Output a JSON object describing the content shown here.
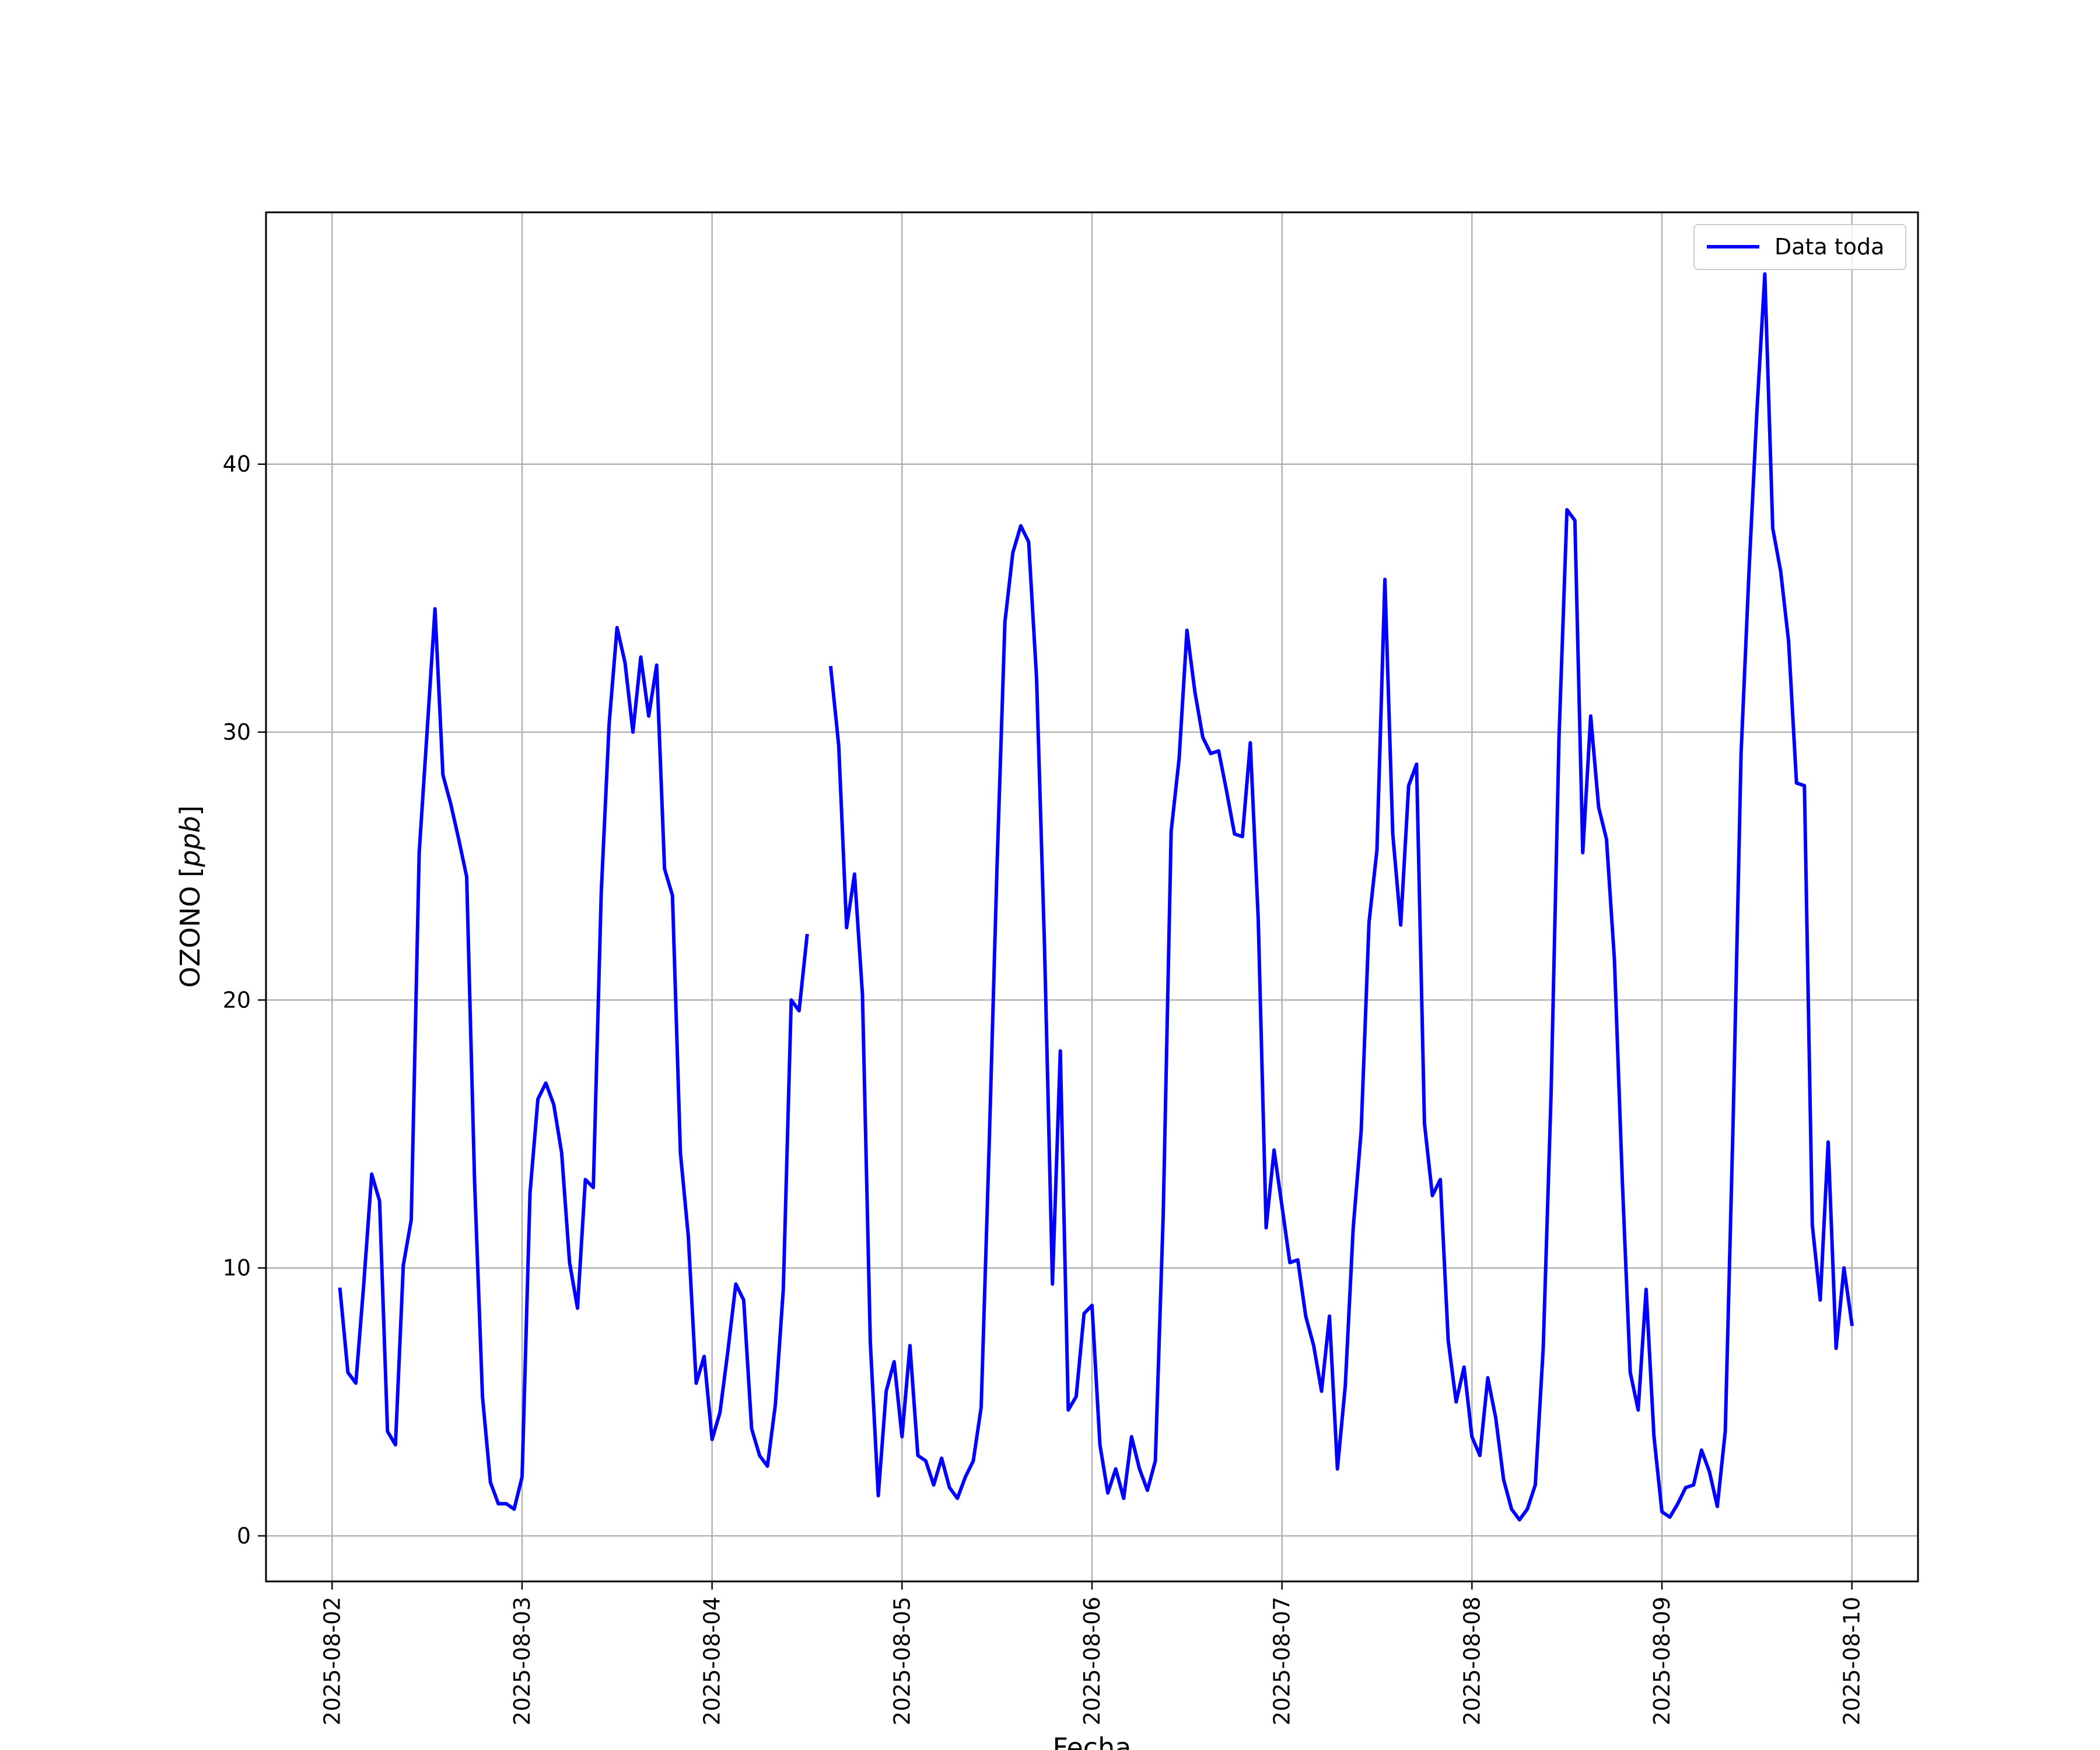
{
  "chart_data": {
    "type": "line",
    "title": "",
    "xlabel": "Fecha",
    "ylabel_main": "OZONO [",
    "ylabel_unit": "ppb",
    "ylabel_close": "]",
    "x_ticks": [
      "2025-08-02",
      "2025-08-03",
      "2025-08-04",
      "2025-08-05",
      "2025-08-06",
      "2025-08-07",
      "2025-08-08",
      "2025-08-09",
      "2025-08-10"
    ],
    "y_ticks": [
      0,
      10,
      20,
      30,
      40
    ],
    "xlim": [
      "2025-08-01T15:39",
      "2025-08-10T08:21"
    ],
    "ylim": [
      -1.7,
      49.4
    ],
    "grid": true,
    "legend_position": "top-right",
    "series": [
      {
        "name": "Data toda",
        "color": "#0000ff",
        "points": [
          [
            "2025-08-02T01:00",
            9.2
          ],
          [
            "2025-08-02T02:00",
            6.1
          ],
          [
            "2025-08-02T03:00",
            5.7
          ],
          [
            "2025-08-02T04:00",
            9.4
          ],
          [
            "2025-08-02T05:00",
            13.5
          ],
          [
            "2025-08-02T06:00",
            12.5
          ],
          [
            "2025-08-02T07:00",
            3.9
          ],
          [
            "2025-08-02T08:00",
            3.4
          ],
          [
            "2025-08-02T09:00",
            10.1
          ],
          [
            "2025-08-02T10:00",
            11.8
          ],
          [
            "2025-08-02T11:00",
            25.5
          ],
          [
            "2025-08-02T12:00",
            30.0
          ],
          [
            "2025-08-02T13:00",
            34.6
          ],
          [
            "2025-08-02T14:00",
            28.4
          ],
          [
            "2025-08-02T15:00",
            27.3
          ],
          [
            "2025-08-02T16:00",
            26.0
          ],
          [
            "2025-08-02T17:00",
            24.6
          ],
          [
            "2025-08-02T18:00",
            13.2
          ],
          [
            "2025-08-02T19:00",
            5.2
          ],
          [
            "2025-08-02T20:00",
            2.0
          ],
          [
            "2025-08-02T21:00",
            1.2
          ],
          [
            "2025-08-02T22:00",
            1.2
          ],
          [
            "2025-08-02T23:00",
            1.0
          ],
          [
            "2025-08-03T00:00",
            2.2
          ],
          [
            "2025-08-03T01:00",
            12.8
          ],
          [
            "2025-08-03T02:00",
            16.3
          ],
          [
            "2025-08-03T03:00",
            16.9
          ],
          [
            "2025-08-03T04:00",
            16.1
          ],
          [
            "2025-08-03T05:00",
            14.3
          ],
          [
            "2025-08-03T06:00",
            10.2
          ],
          [
            "2025-08-03T07:00",
            8.5
          ],
          [
            "2025-08-03T08:00",
            13.3
          ],
          [
            "2025-08-03T09:00",
            13.0
          ],
          [
            "2025-08-03T10:00",
            24.0
          ],
          [
            "2025-08-03T11:00",
            30.3
          ],
          [
            "2025-08-03T12:00",
            33.9
          ],
          [
            "2025-08-03T13:00",
            32.6
          ],
          [
            "2025-08-03T14:00",
            30.0
          ],
          [
            "2025-08-03T15:00",
            32.8
          ],
          [
            "2025-08-03T16:00",
            30.6
          ],
          [
            "2025-08-03T17:00",
            32.5
          ],
          [
            "2025-08-03T18:00",
            24.9
          ],
          [
            "2025-08-03T19:00",
            23.9
          ],
          [
            "2025-08-03T20:00",
            14.3
          ],
          [
            "2025-08-03T21:00",
            11.2
          ],
          [
            "2025-08-03T22:00",
            5.7
          ],
          [
            "2025-08-03T23:00",
            6.7
          ],
          [
            "2025-08-04T00:00",
            3.6
          ],
          [
            "2025-08-04T01:00",
            4.6
          ],
          [
            "2025-08-04T02:00",
            6.9
          ],
          [
            "2025-08-04T03:00",
            9.4
          ],
          [
            "2025-08-04T04:00",
            8.8
          ],
          [
            "2025-08-04T05:00",
            4.0
          ],
          [
            "2025-08-04T06:00",
            3.0
          ],
          [
            "2025-08-04T07:00",
            2.6
          ],
          [
            "2025-08-04T08:00",
            4.9
          ],
          [
            "2025-08-04T09:00",
            9.2
          ],
          [
            "2025-08-04T10:00",
            20.0
          ],
          [
            "2025-08-04T11:00",
            19.6
          ],
          [
            "2025-08-04T12:00",
            22.4
          ],
          null,
          [
            "2025-08-04T15:00",
            32.4
          ],
          [
            "2025-08-04T16:00",
            29.5
          ],
          [
            "2025-08-04T17:00",
            22.7
          ],
          [
            "2025-08-04T18:00",
            24.7
          ],
          [
            "2025-08-04T19:00",
            20.2
          ],
          [
            "2025-08-04T20:00",
            7.2
          ],
          [
            "2025-08-04T21:00",
            1.5
          ],
          [
            "2025-08-04T22:00",
            5.4
          ],
          [
            "2025-08-04T23:00",
            6.5
          ],
          [
            "2025-08-05T00:00",
            3.7
          ],
          [
            "2025-08-05T01:00",
            7.1
          ],
          [
            "2025-08-05T02:00",
            3.0
          ],
          [
            "2025-08-05T03:00",
            2.8
          ],
          [
            "2025-08-05T04:00",
            1.9
          ],
          [
            "2025-08-05T05:00",
            2.9
          ],
          [
            "2025-08-05T06:00",
            1.8
          ],
          [
            "2025-08-05T07:00",
            1.4
          ],
          [
            "2025-08-05T08:00",
            2.2
          ],
          [
            "2025-08-05T09:00",
            2.8
          ],
          [
            "2025-08-05T10:00",
            4.8
          ],
          [
            "2025-08-05T11:00",
            14.5
          ],
          [
            "2025-08-05T12:00",
            25.0
          ],
          [
            "2025-08-05T13:00",
            34.1
          ],
          [
            "2025-08-05T14:00",
            36.7
          ],
          [
            "2025-08-05T15:00",
            37.7
          ],
          [
            "2025-08-05T16:00",
            37.1
          ],
          [
            "2025-08-05T17:00",
            32.0
          ],
          [
            "2025-08-05T18:00",
            22.0
          ],
          [
            "2025-08-05T19:00",
            9.4
          ],
          [
            "2025-08-05T20:00",
            18.1
          ],
          [
            "2025-08-05T21:00",
            4.7
          ],
          [
            "2025-08-05T22:00",
            5.2
          ],
          [
            "2025-08-05T23:00",
            8.3
          ],
          [
            "2025-08-06T00:00",
            8.6
          ],
          [
            "2025-08-06T01:00",
            3.4
          ],
          [
            "2025-08-06T02:00",
            1.6
          ],
          [
            "2025-08-06T03:00",
            2.5
          ],
          [
            "2025-08-06T04:00",
            1.4
          ],
          [
            "2025-08-06T05:00",
            3.7
          ],
          [
            "2025-08-06T06:00",
            2.5
          ],
          [
            "2025-08-06T07:00",
            1.7
          ],
          [
            "2025-08-06T08:00",
            2.8
          ],
          [
            "2025-08-06T09:00",
            12.0
          ],
          [
            "2025-08-06T10:00",
            26.3
          ],
          [
            "2025-08-06T11:00",
            29.0
          ],
          [
            "2025-08-06T12:00",
            33.8
          ],
          [
            "2025-08-06T13:00",
            31.5
          ],
          [
            "2025-08-06T14:00",
            29.8
          ],
          [
            "2025-08-06T15:00",
            29.2
          ],
          [
            "2025-08-06T16:00",
            29.3
          ],
          [
            "2025-08-06T17:00",
            27.8
          ],
          [
            "2025-08-06T18:00",
            26.2
          ],
          [
            "2025-08-06T19:00",
            26.1
          ],
          [
            "2025-08-06T20:00",
            29.6
          ],
          [
            "2025-08-06T21:00",
            23.0
          ],
          [
            "2025-08-06T22:00",
            11.5
          ],
          [
            "2025-08-06T23:00",
            14.4
          ],
          [
            "2025-08-07T00:00",
            12.3
          ],
          [
            "2025-08-07T01:00",
            10.2
          ],
          [
            "2025-08-07T02:00",
            10.3
          ],
          [
            "2025-08-07T03:00",
            8.2
          ],
          [
            "2025-08-07T04:00",
            7.1
          ],
          [
            "2025-08-07T05:00",
            5.4
          ],
          [
            "2025-08-07T06:00",
            8.2
          ],
          [
            "2025-08-07T07:00",
            2.5
          ],
          [
            "2025-08-07T08:00",
            5.6
          ],
          [
            "2025-08-07T09:00",
            11.5
          ],
          [
            "2025-08-07T10:00",
            15.1
          ],
          [
            "2025-08-07T11:00",
            22.9
          ],
          [
            "2025-08-07T12:00",
            25.6
          ],
          [
            "2025-08-07T13:00",
            35.7
          ],
          [
            "2025-08-07T14:00",
            26.2
          ],
          [
            "2025-08-07T15:00",
            22.8
          ],
          [
            "2025-08-07T16:00",
            28.0
          ],
          [
            "2025-08-07T17:00",
            28.8
          ],
          [
            "2025-08-07T18:00",
            15.4
          ],
          [
            "2025-08-07T19:00",
            12.7
          ],
          [
            "2025-08-07T20:00",
            13.3
          ],
          [
            "2025-08-07T21:00",
            7.3
          ],
          [
            "2025-08-07T22:00",
            5.0
          ],
          [
            "2025-08-07T23:00",
            6.3
          ],
          [
            "2025-08-08T00:00",
            3.7
          ],
          [
            "2025-08-08T01:00",
            3.0
          ],
          [
            "2025-08-08T02:00",
            5.9
          ],
          [
            "2025-08-08T03:00",
            4.4
          ],
          [
            "2025-08-08T04:00",
            2.1
          ],
          [
            "2025-08-08T05:00",
            1.0
          ],
          [
            "2025-08-08T06:00",
            0.6
          ],
          [
            "2025-08-08T07:00",
            1.0
          ],
          [
            "2025-08-08T08:00",
            1.9
          ],
          [
            "2025-08-08T09:00",
            7.0
          ],
          [
            "2025-08-08T10:00",
            16.5
          ],
          [
            "2025-08-08T11:00",
            29.8
          ],
          [
            "2025-08-08T12:00",
            38.3
          ],
          [
            "2025-08-08T13:00",
            37.9
          ],
          [
            "2025-08-08T14:00",
            25.5
          ],
          [
            "2025-08-08T15:00",
            30.6
          ],
          [
            "2025-08-08T16:00",
            27.2
          ],
          [
            "2025-08-08T17:00",
            26.0
          ],
          [
            "2025-08-08T18:00",
            21.5
          ],
          [
            "2025-08-08T19:00",
            13.2
          ],
          [
            "2025-08-08T20:00",
            6.1
          ],
          [
            "2025-08-08T21:00",
            4.7
          ],
          [
            "2025-08-08T22:00",
            9.2
          ],
          [
            "2025-08-08T23:00",
            3.7
          ],
          [
            "2025-08-09T00:00",
            0.9
          ],
          [
            "2025-08-09T01:00",
            0.7
          ],
          [
            "2025-08-09T02:00",
            1.2
          ],
          [
            "2025-08-09T03:00",
            1.8
          ],
          [
            "2025-08-09T04:00",
            1.9
          ],
          [
            "2025-08-09T05:00",
            3.2
          ],
          [
            "2025-08-09T06:00",
            2.4
          ],
          [
            "2025-08-09T07:00",
            1.1
          ],
          [
            "2025-08-09T08:00",
            3.9
          ],
          [
            "2025-08-09T09:00",
            15.5
          ],
          [
            "2025-08-09T10:00",
            29.2
          ],
          [
            "2025-08-09T11:00",
            36.0
          ],
          [
            "2025-08-09T12:00",
            42.0
          ],
          [
            "2025-08-09T13:00",
            47.1
          ],
          [
            "2025-08-09T14:00",
            37.6
          ],
          [
            "2025-08-09T15:00",
            36.0
          ],
          [
            "2025-08-09T16:00",
            33.4
          ],
          [
            "2025-08-09T17:00",
            28.1
          ],
          [
            "2025-08-09T18:00",
            28.0
          ],
          [
            "2025-08-09T19:00",
            11.6
          ],
          [
            "2025-08-09T20:00",
            8.8
          ],
          [
            "2025-08-09T21:00",
            14.7
          ],
          [
            "2025-08-09T22:00",
            7.0
          ],
          [
            "2025-08-09T23:00",
            10.0
          ],
          [
            "2025-08-10T00:00",
            7.9
          ]
        ]
      }
    ]
  }
}
